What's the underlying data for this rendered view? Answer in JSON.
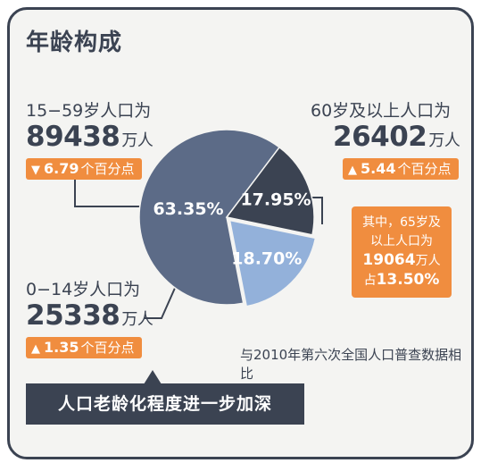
{
  "title": "年龄构成",
  "chart_data": {
    "type": "pie",
    "categories": [
      "15-59岁",
      "0-14岁",
      "60岁及以上"
    ],
    "values": [
      63.35,
      17.95,
      18.7
    ],
    "slice_labels": [
      "63.35%",
      "17.95%",
      "18.70%"
    ],
    "colors": [
      "#5c6b87",
      "#3b4352",
      "#93b1da"
    ]
  },
  "groups": {
    "working": {
      "label": "15−59岁人口为",
      "value": "89438",
      "unit": "万人",
      "change_dir": "down",
      "change": "6.79",
      "change_unit": "个百分点"
    },
    "elderly": {
      "label": "60岁及以上人口为",
      "value": "26402",
      "unit": "万人",
      "change_dir": "up",
      "change": "5.44",
      "change_unit": "个百分点"
    },
    "children": {
      "label": "0−14岁人口为",
      "value": "25338",
      "unit": "万人",
      "change_dir": "up",
      "change": "1.35",
      "change_unit": "个百分点"
    }
  },
  "note": {
    "line1": "其中，65岁及",
    "line2": "以上人口为",
    "value": "19064",
    "unit": "万人",
    "share_prefix": "占",
    "share": "13.50%"
  },
  "comparison": "与2010年第六次全国人口普查数据相比",
  "banner": "人口老龄化程度进一步加深"
}
